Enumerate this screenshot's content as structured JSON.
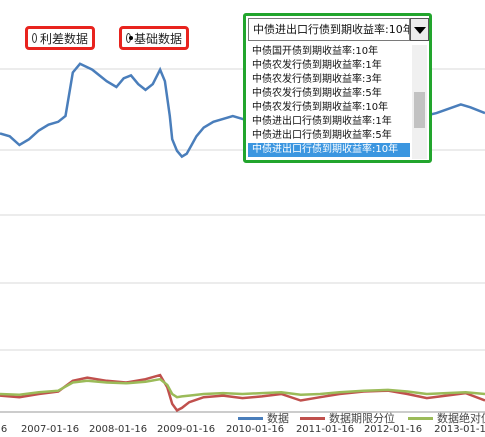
{
  "controls": {
    "radio_rate": {
      "label": "利差数据",
      "checked": false
    },
    "radio_base": {
      "label": "基础数据",
      "checked": true
    }
  },
  "dropdown": {
    "selected": "中债进出口行债到期收益率:10年",
    "items": [
      "中债国开债到期收益率:10年",
      "中债农发行债到期收益率:1年",
      "中债农发行债到期收益率:3年",
      "中债农发行债到期收益率:5年",
      "中债农发行债到期收益率:10年",
      "中债进出口行债到期收益率:1年",
      "中债进出口行债到期收益率:5年",
      "中债进出口行债到期收益率:10年"
    ],
    "selected_index": 7,
    "scroll_fraction": 0.6
  },
  "colors": {
    "data": "#4a7ebb",
    "percentile": "#c0504d",
    "abs_value": "#9bbb59",
    "grid": "#d9d9d9",
    "axis_text": "#333333"
  },
  "chart_data": {
    "type": "line",
    "x_tick_labels": [
      "6",
      "2007-01-16",
      "2008-01-16",
      "2009-01-16",
      "2010-01-16",
      "2011-01-16",
      "2012-01-16",
      "2013-01-1"
    ],
    "legend": [
      "数据",
      "数据期限分位",
      "数据绝对值"
    ],
    "upper_series": {
      "name": "数据",
      "points": [
        [
          0.0,
          0.54
        ],
        [
          0.02,
          0.53
        ],
        [
          0.04,
          0.5
        ],
        [
          0.06,
          0.52
        ],
        [
          0.08,
          0.55
        ],
        [
          0.1,
          0.57
        ],
        [
          0.12,
          0.58
        ],
        [
          0.135,
          0.6
        ],
        [
          0.15,
          0.75
        ],
        [
          0.165,
          0.78
        ],
        [
          0.19,
          0.76
        ],
        [
          0.205,
          0.74
        ],
        [
          0.22,
          0.72
        ],
        [
          0.24,
          0.7
        ],
        [
          0.255,
          0.73
        ],
        [
          0.27,
          0.74
        ],
        [
          0.285,
          0.71
        ],
        [
          0.3,
          0.69
        ],
        [
          0.315,
          0.71
        ],
        [
          0.33,
          0.76
        ],
        [
          0.34,
          0.72
        ],
        [
          0.35,
          0.6
        ],
        [
          0.355,
          0.52
        ],
        [
          0.365,
          0.48
        ],
        [
          0.375,
          0.46
        ],
        [
          0.385,
          0.47
        ],
        [
          0.395,
          0.5
        ],
        [
          0.405,
          0.53
        ],
        [
          0.42,
          0.56
        ],
        [
          0.44,
          0.58
        ],
        [
          0.46,
          0.59
        ],
        [
          0.48,
          0.6
        ],
        [
          0.5,
          0.59
        ],
        [
          0.52,
          0.58
        ],
        [
          0.54,
          0.6
        ],
        [
          0.56,
          0.62
        ],
        [
          0.58,
          0.61
        ],
        [
          0.6,
          0.58
        ],
        [
          0.62,
          0.56
        ],
        [
          0.64,
          0.57
        ],
        [
          0.66,
          0.59
        ],
        [
          0.7,
          0.61
        ],
        [
          0.75,
          0.62
        ],
        [
          0.8,
          0.6
        ],
        [
          0.85,
          0.59
        ],
        [
          0.9,
          0.61
        ],
        [
          0.95,
          0.64
        ],
        [
          0.97,
          0.63
        ],
        [
          1.0,
          0.61
        ]
      ]
    },
    "lower_series": [
      {
        "name": "数据期限分位",
        "points": [
          [
            0.0,
            0.2
          ],
          [
            0.04,
            0.18
          ],
          [
            0.08,
            0.22
          ],
          [
            0.12,
            0.25
          ],
          [
            0.15,
            0.38
          ],
          [
            0.18,
            0.42
          ],
          [
            0.22,
            0.38
          ],
          [
            0.26,
            0.36
          ],
          [
            0.3,
            0.4
          ],
          [
            0.33,
            0.45
          ],
          [
            0.345,
            0.3
          ],
          [
            0.355,
            0.1
          ],
          [
            0.365,
            0.02
          ],
          [
            0.375,
            0.05
          ],
          [
            0.39,
            0.12
          ],
          [
            0.42,
            0.18
          ],
          [
            0.46,
            0.2
          ],
          [
            0.5,
            0.17
          ],
          [
            0.54,
            0.19
          ],
          [
            0.58,
            0.22
          ],
          [
            0.62,
            0.14
          ],
          [
            0.66,
            0.18
          ],
          [
            0.7,
            0.22
          ],
          [
            0.75,
            0.25
          ],
          [
            0.8,
            0.26
          ],
          [
            0.84,
            0.22
          ],
          [
            0.88,
            0.17
          ],
          [
            0.92,
            0.2
          ],
          [
            0.96,
            0.23
          ],
          [
            1.0,
            0.14
          ]
        ]
      },
      {
        "name": "数据绝对值",
        "points": [
          [
            0.0,
            0.22
          ],
          [
            0.04,
            0.21
          ],
          [
            0.08,
            0.24
          ],
          [
            0.12,
            0.26
          ],
          [
            0.15,
            0.36
          ],
          [
            0.18,
            0.38
          ],
          [
            0.22,
            0.36
          ],
          [
            0.26,
            0.35
          ],
          [
            0.3,
            0.37
          ],
          [
            0.33,
            0.4
          ],
          [
            0.345,
            0.33
          ],
          [
            0.355,
            0.22
          ],
          [
            0.365,
            0.18
          ],
          [
            0.375,
            0.19
          ],
          [
            0.39,
            0.2
          ],
          [
            0.42,
            0.22
          ],
          [
            0.46,
            0.23
          ],
          [
            0.5,
            0.22
          ],
          [
            0.54,
            0.23
          ],
          [
            0.58,
            0.24
          ],
          [
            0.62,
            0.21
          ],
          [
            0.66,
            0.22
          ],
          [
            0.7,
            0.24
          ],
          [
            0.75,
            0.26
          ],
          [
            0.8,
            0.27
          ],
          [
            0.84,
            0.25
          ],
          [
            0.88,
            0.22
          ],
          [
            0.92,
            0.23
          ],
          [
            0.96,
            0.24
          ],
          [
            1.0,
            0.22
          ]
        ]
      }
    ]
  }
}
